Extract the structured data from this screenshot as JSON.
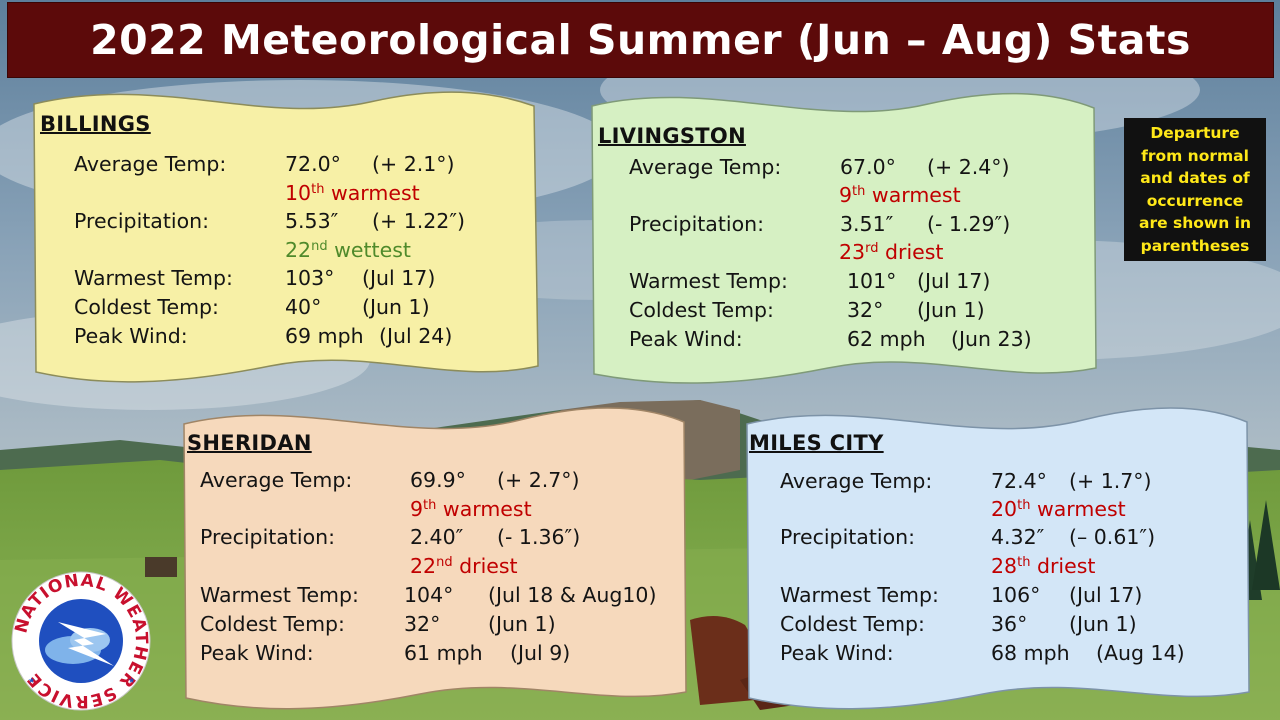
{
  "title": "2022 Meteorological Summer (Jun – Aug) Stats",
  "note": {
    "lines": [
      "Departure",
      "from normal",
      "and dates of",
      "occurrence",
      "are shown in",
      "parentheses"
    ]
  },
  "colors": {
    "title_bg": "#5c0a0a",
    "warm_rank": "#c00000",
    "wet_rank": "#4f8a2b",
    "dry_rank": "#c00000",
    "billings_card": "#f7f0a6",
    "livingston_card": "#d6f0c3",
    "sheridan_card": "#f6d9bc",
    "miles_city_card": "#d3e6f7",
    "note_text": "#ffe818"
  },
  "logo": {
    "text": "NATIONAL WEATHER SERVICE",
    "icon": "nws-logo-icon"
  },
  "stations": {
    "billings": {
      "name": "BILLINGS",
      "avg_label": "Average Temp:",
      "avg_value": "72.0°",
      "avg_dep": "(+ 2.1°)",
      "avg_rank_num": "10",
      "avg_rank_sup": "th",
      "avg_rank_word": "warmest",
      "precip_label": "Precipitation:",
      "precip_value": "5.53″",
      "precip_dep": "(+ 1.22″)",
      "precip_rank_num": "22",
      "precip_rank_sup": "nd",
      "precip_rank_word": "wettest",
      "warmest_label": "Warmest Temp:",
      "warmest_value": "103°",
      "warmest_date": "(Jul 17)",
      "coldest_label": "Coldest Temp:",
      "coldest_value": "40°",
      "coldest_date": "(Jun 1)",
      "wind_label": "Peak Wind:",
      "wind_value": "69 mph",
      "wind_date": "(Jul 24)"
    },
    "livingston": {
      "name": "LIVINGSTON",
      "avg_label": "Average Temp:",
      "avg_value": "67.0°",
      "avg_dep": "(+ 2.4°)",
      "avg_rank_num": "9",
      "avg_rank_sup": "th",
      "avg_rank_word": "warmest",
      "precip_label": "Precipitation:",
      "precip_value": "3.51″",
      "precip_dep": "(- 1.29″)",
      "precip_rank_num": "23",
      "precip_rank_sup": "rd",
      "precip_rank_word": "driest",
      "warmest_label": "Warmest Temp:",
      "warmest_value": "101°",
      "warmest_date": "(Jul 17)",
      "coldest_label": "Coldest Temp:",
      "coldest_value": "32°",
      "coldest_date": "(Jun 1)",
      "wind_label": "Peak Wind:",
      "wind_value": "62 mph",
      "wind_date": "(Jun 23)"
    },
    "sheridan": {
      "name": "SHERIDAN",
      "avg_label": "Average Temp:",
      "avg_value": "69.9°",
      "avg_dep": "(+ 2.7°)",
      "avg_rank_num": "9",
      "avg_rank_sup": "th",
      "avg_rank_word": "warmest",
      "precip_label": "Precipitation:",
      "precip_value": "2.40″",
      "precip_dep": "(- 1.36″)",
      "precip_rank_num": "22",
      "precip_rank_sup": "nd",
      "precip_rank_word": "driest",
      "warmest_label": "Warmest Temp:",
      "warmest_value": "104°",
      "warmest_date": "(Jul 18 & Aug10)",
      "coldest_label": "Coldest Temp:",
      "coldest_value": "32°",
      "coldest_date": "(Jun 1)",
      "wind_label": "Peak Wind:",
      "wind_value": "61 mph",
      "wind_date": "(Jul 9)"
    },
    "miles_city": {
      "name": "MILES CITY",
      "avg_label": "Average Temp:",
      "avg_value": "72.4°",
      "avg_dep": "(+ 1.7°)",
      "avg_rank_num": "20",
      "avg_rank_sup": "th",
      "avg_rank_word": "warmest",
      "precip_label": "Precipitation:",
      "precip_value": "4.32″",
      "precip_dep": "(– 0.61″)",
      "precip_rank_num": "28",
      "precip_rank_sup": "th",
      "precip_rank_word": "driest",
      "warmest_label": "Warmest Temp:",
      "warmest_value": "106°",
      "warmest_date": "(Jul 17)",
      "coldest_label": "Coldest Temp:",
      "coldest_value": "36°",
      "coldest_date": "(Jun 1)",
      "wind_label": "Peak Wind:",
      "wind_value": "68 mph",
      "wind_date": "(Aug 14)"
    }
  }
}
